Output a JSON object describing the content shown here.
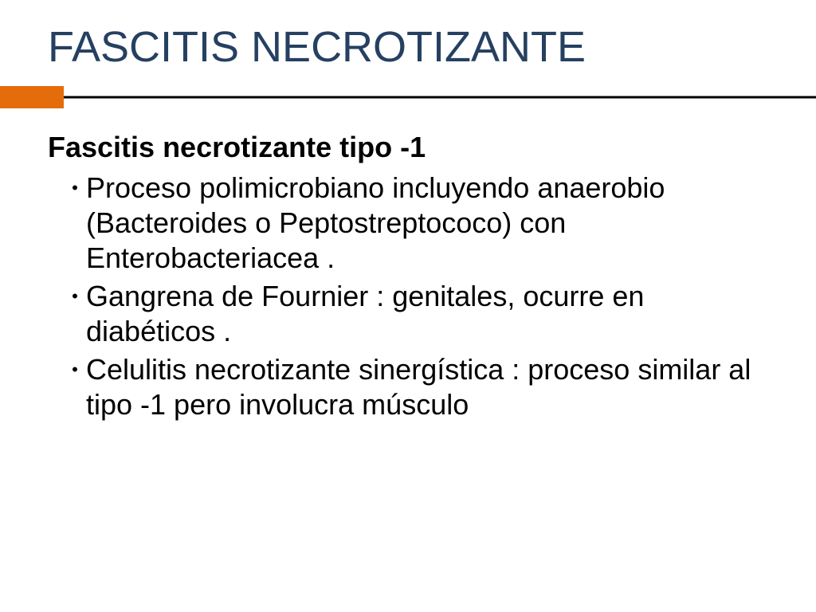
{
  "colors": {
    "title": "#254061",
    "accent_block": "#e46c0a",
    "rule_line": "#000000",
    "body_text": "#000000",
    "bullet": "#000000",
    "background": "#ffffff"
  },
  "typography": {
    "title_fontsize": 54,
    "subtitle_fontsize": 36,
    "body_fontsize": 36,
    "body_lineheight": 44,
    "bullet_fontsize": 22
  },
  "layout": {
    "slide_width": 1024,
    "slide_height": 768,
    "rule_block_width": 80,
    "rule_block_height": 28
  },
  "slide": {
    "title": "FASCITIS NECROTIZANTE",
    "subtitle": "Fascitis necrotizante tipo -1",
    "bullets": [
      "Proceso polimicrobiano incluyendo anaerobio (Bacteroides o Peptostreptococo) con Enterobacteriacea .",
      "Gangrena de Fournier : genitales, ocurre en diabéticos .",
      "Celulitis necrotizante sinergística : proceso similar al tipo -1 pero involucra músculo"
    ]
  }
}
